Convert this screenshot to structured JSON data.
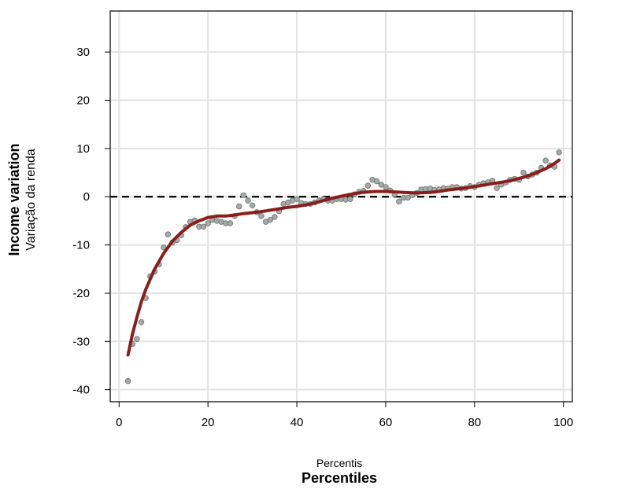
{
  "chart_data": {
    "type": "scatter",
    "title": "",
    "xlabel": "Percentiles",
    "xlabel_secondary": "Percentis",
    "ylabel": "Income variation",
    "ylabel_secondary": "Variação da renda",
    "xlim": [
      -2,
      102
    ],
    "ylim": [
      -42.5,
      38.5
    ],
    "xticks": [
      0,
      20,
      40,
      60,
      80,
      100
    ],
    "yticks": [
      -40,
      -30,
      -20,
      -10,
      0,
      10,
      20,
      30
    ],
    "grid": true,
    "reference_line": {
      "y": 0,
      "style": "dashed",
      "color": "#000000"
    },
    "colors": {
      "points": "#a3aaa8",
      "point_stroke": "#6f7574",
      "fit": "#8b1e1a",
      "grid": "#e3e3e3"
    },
    "series": [
      {
        "kind": "points",
        "x": [
          2,
          3,
          4,
          5,
          6,
          7,
          8,
          9,
          10,
          11,
          12,
          13,
          14,
          15,
          16,
          17,
          18,
          19,
          20,
          21,
          22,
          23,
          24,
          25,
          26,
          27,
          28,
          29,
          30,
          31,
          32,
          33,
          34,
          35,
          36,
          37,
          38,
          39,
          40,
          41,
          42,
          43,
          44,
          45,
          46,
          47,
          48,
          49,
          50,
          51,
          52,
          53,
          54,
          55,
          56,
          57,
          58,
          59,
          60,
          61,
          62,
          63,
          64,
          65,
          66,
          67,
          68,
          69,
          70,
          71,
          72,
          73,
          74,
          75,
          76,
          77,
          78,
          79,
          80,
          81,
          82,
          83,
          84,
          85,
          86,
          87,
          88,
          89,
          90,
          91,
          92,
          93,
          94,
          95,
          96,
          97,
          98,
          99
        ],
        "y": [
          -38.2,
          -30.5,
          -29.5,
          -26.0,
          -21.0,
          -16.5,
          -15.5,
          -14.0,
          -10.5,
          -7.8,
          -9.5,
          -9.0,
          -8.0,
          -6.3,
          -5.2,
          -4.9,
          -6.2,
          -6.2,
          -5.5,
          -4.8,
          -5.0,
          -5.2,
          -5.5,
          -5.5,
          -4.0,
          -2.0,
          0.3,
          -0.8,
          -1.8,
          -3.2,
          -4.0,
          -5.2,
          -4.8,
          -4.2,
          -3.0,
          -1.5,
          -1.2,
          -0.8,
          -0.5,
          -1.3,
          -1.5,
          -1.5,
          -1.2,
          -0.8,
          -0.5,
          -0.8,
          -0.8,
          -0.5,
          -0.5,
          -0.6,
          -0.5,
          0.5,
          1.0,
          1.2,
          2.3,
          3.5,
          3.2,
          2.5,
          2.0,
          1.3,
          0.5,
          -1.0,
          -0.2,
          -0.2,
          0.3,
          0.8,
          1.5,
          1.6,
          1.7,
          1.4,
          1.5,
          1.8,
          1.7,
          2.0,
          2.0,
          1.7,
          1.8,
          2.2,
          2.0,
          2.5,
          2.8,
          3.0,
          3.3,
          1.8,
          2.5,
          2.9,
          3.5,
          3.7,
          3.5,
          5.0,
          4.2,
          4.6,
          5.0,
          6.0,
          7.5,
          6.5,
          6.2,
          9.2
        ]
      },
      {
        "kind": "fit",
        "x": [
          2,
          3,
          4,
          5,
          6,
          8,
          10,
          12,
          14,
          16,
          18,
          20,
          22,
          24,
          26,
          28,
          30,
          32,
          34,
          36,
          38,
          40,
          42,
          44,
          46,
          48,
          50,
          52,
          54,
          56,
          58,
          60,
          62,
          64,
          66,
          68,
          70,
          72,
          74,
          76,
          78,
          80,
          82,
          84,
          86,
          88,
          90,
          92,
          94,
          96,
          98,
          99
        ],
        "y": [
          -32.8,
          -28.5,
          -25.0,
          -21.8,
          -19.2,
          -15.0,
          -11.8,
          -9.2,
          -7.4,
          -5.9,
          -5.0,
          -4.3,
          -4.0,
          -4.0,
          -3.8,
          -3.5,
          -3.3,
          -3.1,
          -2.8,
          -2.5,
          -2.2,
          -2.0,
          -1.7,
          -1.3,
          -0.8,
          -0.3,
          0.1,
          0.5,
          0.8,
          1.0,
          1.1,
          1.1,
          1.0,
          0.9,
          0.8,
          0.8,
          0.9,
          1.1,
          1.4,
          1.6,
          1.8,
          2.1,
          2.4,
          2.7,
          3.0,
          3.3,
          3.8,
          4.3,
          5.0,
          5.8,
          6.9,
          7.6
        ]
      }
    ]
  }
}
